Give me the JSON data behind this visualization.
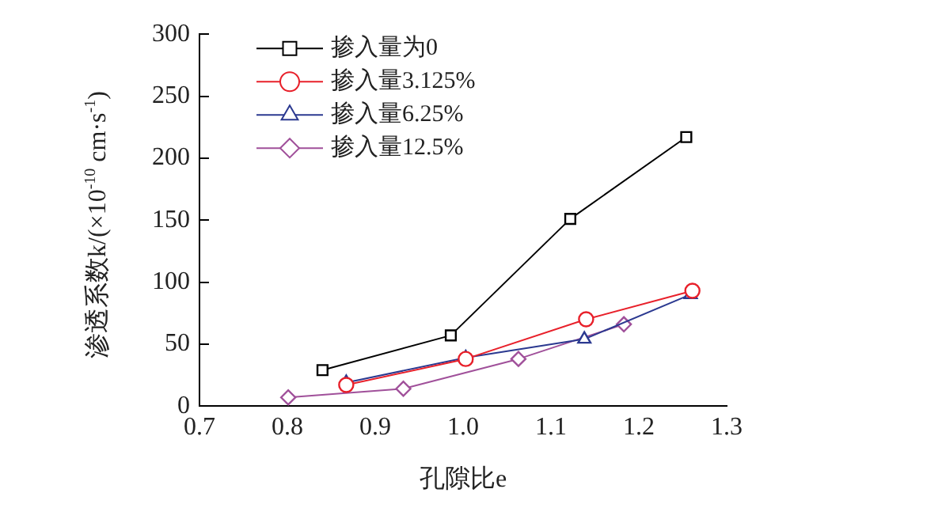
{
  "chart_data": {
    "type": "line",
    "xlabel": "孔隙比e",
    "ylabel": "渗透系数k/(×10$^{-10}$ cm·s$^{-1}$)",
    "xlim": [
      0.7,
      1.3
    ],
    "xticks": [
      {
        "value": 0.7,
        "label": "0.7"
      },
      {
        "value": 0.8,
        "label": "0.8"
      },
      {
        "value": 0.9,
        "label": "0.9"
      },
      {
        "value": 1.0,
        "label": "1.0"
      },
      {
        "value": 1.1,
        "label": "1.1"
      },
      {
        "value": 1.2,
        "label": "1.2"
      },
      {
        "value": 1.3,
        "label": "1.3"
      }
    ],
    "ylim": [
      0,
      300
    ],
    "yticks": [
      0,
      50,
      100,
      150,
      200,
      250,
      300
    ],
    "grid": false,
    "legend": "top left",
    "series": [
      {
        "name": "掺入量为0",
        "color": "#000000",
        "marker": "square",
        "x": [
          0.84,
          0.986,
          1.122,
          1.254
        ],
        "values": [
          29,
          57,
          151,
          217
        ]
      },
      {
        "name": "掺入量3.125%",
        "color": "#e8202a",
        "marker": "circle",
        "x": [
          0.867,
          1.003,
          1.14,
          1.261
        ],
        "values": [
          17,
          38,
          70,
          93
        ]
      },
      {
        "name": "掺入量6.25%",
        "color": "#2b3990",
        "marker": "triangle",
        "x": [
          0.867,
          1.003,
          1.138,
          1.259
        ],
        "values": [
          19,
          39,
          54,
          90
        ]
      },
      {
        "name": "掺入量12.5%",
        "color": "#a0509a",
        "marker": "diamond",
        "x": [
          0.801,
          0.932,
          1.063,
          1.183
        ],
        "values": [
          7,
          14,
          38,
          66
        ]
      }
    ]
  }
}
